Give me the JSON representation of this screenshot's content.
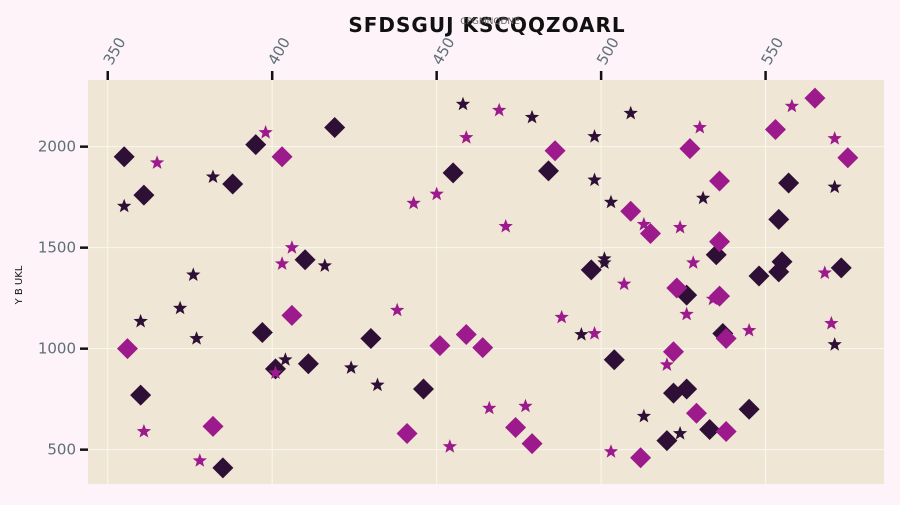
{
  "chart_data": {
    "type": "scatter",
    "title": "SFDSGUJ KSCQQZOARL",
    "subtitle": "CPGMNQDNE",
    "xlabel": "",
    "ylabel": "Y B UKL",
    "x_axis_position": "top",
    "xlim": [
      344,
      586
    ],
    "ylim": [
      330,
      2330
    ],
    "x_ticks": [
      350,
      400,
      450,
      500,
      550
    ],
    "y_ticks": [
      500,
      1000,
      1500,
      2000
    ],
    "grid": true,
    "colors": {
      "page_background": "#fdf3f8",
      "plot_background": "#efe6d6",
      "grid": "#fbf7ef",
      "dark": "#2e0f35",
      "magenta": "#9c1a8c"
    },
    "series": [
      {
        "marker": "diamond",
        "color": "#2e0f35",
        "points": [
          [
            355,
            1950
          ],
          [
            360,
            770
          ],
          [
            361,
            1760
          ],
          [
            385,
            410
          ],
          [
            388,
            1815
          ],
          [
            395,
            2010
          ],
          [
            397,
            1080
          ],
          [
            401,
            900
          ],
          [
            410,
            1440
          ],
          [
            411,
            925
          ],
          [
            419,
            2095
          ],
          [
            430,
            1050
          ],
          [
            446,
            800
          ],
          [
            455,
            1870
          ],
          [
            484,
            1880
          ],
          [
            497,
            1390
          ],
          [
            504,
            945
          ],
          [
            520,
            545
          ],
          [
            522,
            780
          ],
          [
            526,
            800
          ],
          [
            526,
            1265
          ],
          [
            533,
            600
          ],
          [
            535,
            1465
          ],
          [
            537,
            1075
          ],
          [
            545,
            700
          ],
          [
            548,
            1360
          ],
          [
            554,
            1640
          ],
          [
            554,
            1380
          ],
          [
            555,
            1430
          ],
          [
            557,
            1820
          ],
          [
            573,
            1400
          ]
        ]
      },
      {
        "marker": "diamond",
        "color": "#9c1a8c",
        "points": [
          [
            356,
            1000
          ],
          [
            382,
            615
          ],
          [
            403,
            1950
          ],
          [
            406,
            1165
          ],
          [
            441,
            580
          ],
          [
            451,
            1015
          ],
          [
            459,
            1070
          ],
          [
            464,
            1005
          ],
          [
            474,
            610
          ],
          [
            479,
            530
          ],
          [
            486,
            1980
          ],
          [
            509,
            1680
          ],
          [
            512,
            460
          ],
          [
            515,
            1570
          ],
          [
            522,
            985
          ],
          [
            523,
            1300
          ],
          [
            527,
            1990
          ],
          [
            529,
            680
          ],
          [
            536,
            1830
          ],
          [
            536,
            1260
          ],
          [
            536,
            1530
          ],
          [
            538,
            590
          ],
          [
            538,
            1050
          ],
          [
            553,
            2085
          ],
          [
            565,
            2240
          ],
          [
            575,
            1945
          ]
        ]
      },
      {
        "marker": "star",
        "color": "#2e0f35",
        "points": [
          [
            355,
            1705
          ],
          [
            360,
            1135
          ],
          [
            372,
            1200
          ],
          [
            376,
            1365
          ],
          [
            377,
            1050
          ],
          [
            382,
            1850
          ],
          [
            404,
            945
          ],
          [
            416,
            1410
          ],
          [
            424,
            905
          ],
          [
            432,
            820
          ],
          [
            458,
            2210
          ],
          [
            479,
            2145
          ],
          [
            494,
            1070
          ],
          [
            498,
            2050
          ],
          [
            498,
            1835
          ],
          [
            501,
            1445
          ],
          [
            501,
            1425
          ],
          [
            503,
            1725
          ],
          [
            509,
            2165
          ],
          [
            513,
            665
          ],
          [
            524,
            580
          ],
          [
            531,
            1745
          ],
          [
            571,
            1800
          ],
          [
            571,
            1020
          ]
        ]
      },
      {
        "marker": "star",
        "color": "#9c1a8c",
        "points": [
          [
            361,
            590
          ],
          [
            365,
            1920
          ],
          [
            378,
            445
          ],
          [
            398,
            2070
          ],
          [
            401,
            880
          ],
          [
            403,
            1420
          ],
          [
            406,
            1500
          ],
          [
            438,
            1190
          ],
          [
            443,
            1720
          ],
          [
            450,
            1765
          ],
          [
            454,
            515
          ],
          [
            459,
            2045
          ],
          [
            466,
            705
          ],
          [
            469,
            2180
          ],
          [
            471,
            1605
          ],
          [
            477,
            715
          ],
          [
            488,
            1155
          ],
          [
            498,
            1075
          ],
          [
            503,
            490
          ],
          [
            507,
            1320
          ],
          [
            513,
            1615
          ],
          [
            520,
            920
          ],
          [
            524,
            1600
          ],
          [
            526,
            1170
          ],
          [
            528,
            1425
          ],
          [
            530,
            2095
          ],
          [
            534,
            1245
          ],
          [
            545,
            1090
          ],
          [
            558,
            2200
          ],
          [
            568,
            1375
          ],
          [
            570,
            1125
          ],
          [
            571,
            2040
          ]
        ]
      }
    ]
  }
}
